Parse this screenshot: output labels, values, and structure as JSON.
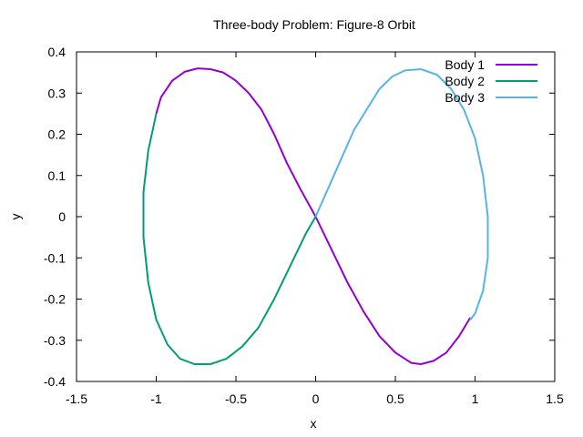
{
  "chart_data": {
    "type": "line",
    "title": "Three-body Problem: Figure-8 Orbit",
    "xlabel": "x",
    "ylabel": "y",
    "xlim": [
      -1.5,
      1.5
    ],
    "ylim": [
      -0.4,
      0.4
    ],
    "xticks": [
      "-1.5",
      "-1",
      "-0.5",
      "0",
      "0.5",
      "1",
      "1.5"
    ],
    "yticks": [
      "-0.4",
      "-0.3",
      "-0.2",
      "-0.1",
      "0",
      "0.1",
      "0.2",
      "0.3",
      "0.4"
    ],
    "grid": false,
    "legend_position": "top-right",
    "series": [
      {
        "name": "Body 1",
        "color": "#9400d3",
        "x": [
          -1.0,
          -0.97,
          -0.9,
          -0.82,
          -0.74,
          -0.66,
          -0.58,
          -0.5,
          -0.42,
          -0.34,
          -0.26,
          -0.18,
          -0.1,
          0.0,
          0.1,
          0.2,
          0.3,
          0.4,
          0.5,
          0.6,
          0.66,
          0.74,
          0.82,
          0.9,
          0.97
        ],
        "y": [
          0.25,
          0.29,
          0.33,
          0.352,
          0.36,
          0.358,
          0.35,
          0.33,
          0.3,
          0.26,
          0.2,
          0.13,
          0.07,
          0.0,
          -0.08,
          -0.16,
          -0.23,
          -0.29,
          -0.33,
          -0.355,
          -0.358,
          -0.35,
          -0.33,
          -0.29,
          -0.245
        ]
      },
      {
        "name": "Body 2",
        "color": "#009e73",
        "x": [
          -1.0,
          -1.05,
          -1.08,
          -1.08,
          -1.05,
          -1.0,
          -0.93,
          -0.85,
          -0.76,
          -0.66,
          -0.56,
          -0.46,
          -0.36,
          -0.26,
          -0.16,
          -0.06,
          0.0
        ],
        "y": [
          0.25,
          0.16,
          0.06,
          -0.05,
          -0.16,
          -0.25,
          -0.31,
          -0.345,
          -0.358,
          -0.358,
          -0.345,
          -0.315,
          -0.27,
          -0.2,
          -0.12,
          -0.04,
          0.0
        ]
      },
      {
        "name": "Body 3",
        "color": "#56b4e9",
        "x": [
          0.0,
          0.08,
          0.16,
          0.24,
          0.32,
          0.4,
          0.48,
          0.56,
          0.66,
          0.76,
          0.85,
          0.93,
          1.0,
          1.05,
          1.08,
          1.08,
          1.05,
          1.0,
          0.97
        ],
        "y": [
          0.0,
          0.07,
          0.14,
          0.21,
          0.26,
          0.31,
          0.34,
          0.355,
          0.358,
          0.345,
          0.31,
          0.26,
          0.19,
          0.1,
          0.0,
          -0.1,
          -0.18,
          -0.235,
          -0.25
        ]
      }
    ]
  }
}
